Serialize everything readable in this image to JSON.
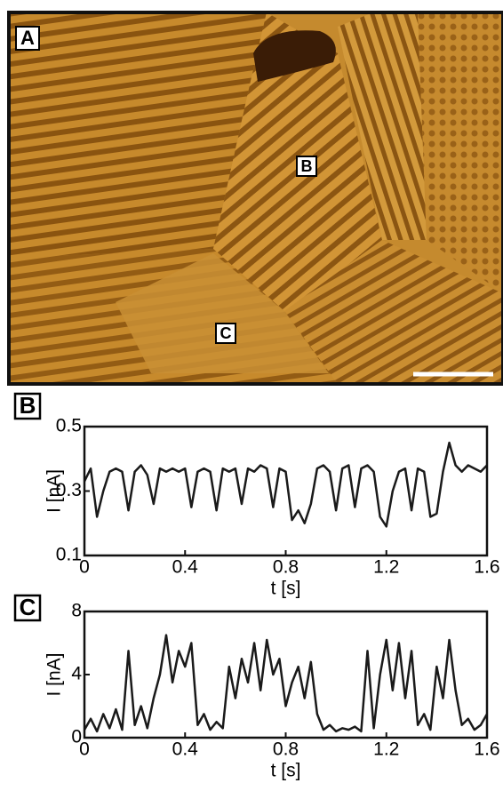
{
  "image": {
    "panel_label": "A",
    "labels": [
      "B",
      "C"
    ]
  },
  "chart_data": [
    {
      "type": "line",
      "panel_label": "B",
      "xlabel": "t [s]",
      "ylabel": "I [nA]",
      "x": [
        0,
        0.025,
        0.05,
        0.075,
        0.1,
        0.125,
        0.15,
        0.175,
        0.2,
        0.225,
        0.25,
        0.275,
        0.3,
        0.325,
        0.35,
        0.375,
        0.4,
        0.425,
        0.45,
        0.475,
        0.5,
        0.525,
        0.55,
        0.575,
        0.6,
        0.625,
        0.65,
        0.675,
        0.7,
        0.725,
        0.75,
        0.775,
        0.8,
        0.825,
        0.85,
        0.875,
        0.9,
        0.925,
        0.95,
        0.975,
        1.0,
        1.025,
        1.05,
        1.075,
        1.1,
        1.125,
        1.15,
        1.175,
        1.2,
        1.225,
        1.25,
        1.275,
        1.3,
        1.325,
        1.35,
        1.375,
        1.4,
        1.425,
        1.45,
        1.475,
        1.5,
        1.525,
        1.55,
        1.575,
        1.6
      ],
      "values": [
        0.33,
        0.37,
        0.22,
        0.3,
        0.36,
        0.37,
        0.36,
        0.24,
        0.36,
        0.38,
        0.35,
        0.26,
        0.37,
        0.36,
        0.37,
        0.36,
        0.37,
        0.25,
        0.36,
        0.37,
        0.36,
        0.24,
        0.37,
        0.36,
        0.37,
        0.26,
        0.37,
        0.36,
        0.38,
        0.37,
        0.25,
        0.37,
        0.36,
        0.21,
        0.24,
        0.2,
        0.26,
        0.37,
        0.38,
        0.36,
        0.24,
        0.37,
        0.38,
        0.25,
        0.37,
        0.38,
        0.36,
        0.22,
        0.19,
        0.3,
        0.36,
        0.37,
        0.24,
        0.37,
        0.36,
        0.22,
        0.23,
        0.36,
        0.45,
        0.38,
        0.36,
        0.38,
        0.37,
        0.36,
        0.38
      ],
      "color": "#1a1a1a",
      "xlim": [
        0,
        1.6
      ],
      "ylim": [
        0.1,
        0.5
      ],
      "xticks": [
        0,
        0.4,
        0.8,
        1.2,
        1.6
      ],
      "yticks": [
        0.1,
        0.3,
        0.5
      ]
    },
    {
      "type": "line",
      "panel_label": "C",
      "xlabel": "t [s]",
      "ylabel": "I [nA]",
      "x": [
        0,
        0.025,
        0.05,
        0.075,
        0.1,
        0.125,
        0.15,
        0.175,
        0.2,
        0.225,
        0.25,
        0.275,
        0.3,
        0.325,
        0.35,
        0.375,
        0.4,
        0.425,
        0.45,
        0.475,
        0.5,
        0.525,
        0.55,
        0.575,
        0.6,
        0.625,
        0.65,
        0.675,
        0.7,
        0.725,
        0.75,
        0.775,
        0.8,
        0.825,
        0.85,
        0.875,
        0.9,
        0.925,
        0.95,
        0.975,
        1.0,
        1.025,
        1.05,
        1.075,
        1.1,
        1.125,
        1.15,
        1.175,
        1.2,
        1.225,
        1.25,
        1.275,
        1.3,
        1.325,
        1.35,
        1.375,
        1.4,
        1.425,
        1.45,
        1.475,
        1.5,
        1.525,
        1.55,
        1.575,
        1.6
      ],
      "values": [
        0.5,
        1.2,
        0.4,
        1.5,
        0.6,
        1.8,
        0.5,
        5.5,
        0.8,
        2.0,
        0.6,
        2.5,
        4.0,
        6.5,
        3.5,
        5.5,
        4.5,
        6.0,
        0.8,
        1.5,
        0.5,
        1.0,
        0.6,
        4.5,
        2.5,
        5.0,
        3.5,
        6.0,
        3.0,
        6.2,
        4.0,
        5.0,
        2.0,
        3.5,
        4.5,
        2.5,
        4.8,
        1.5,
        0.5,
        0.8,
        0.4,
        0.6,
        0.5,
        0.7,
        0.4,
        5.5,
        0.6,
        4.0,
        6.2,
        3.0,
        6.0,
        2.5,
        5.5,
        0.8,
        1.5,
        0.5,
        4.5,
        2.5,
        6.2,
        3.0,
        0.8,
        1.2,
        0.5,
        0.8,
        1.5
      ],
      "color": "#1a1a1a",
      "xlim": [
        0,
        1.6
      ],
      "ylim": [
        0,
        8
      ],
      "xticks": [
        0,
        0.4,
        0.8,
        1.2,
        1.6
      ],
      "yticks": [
        0,
        4,
        8
      ]
    }
  ]
}
